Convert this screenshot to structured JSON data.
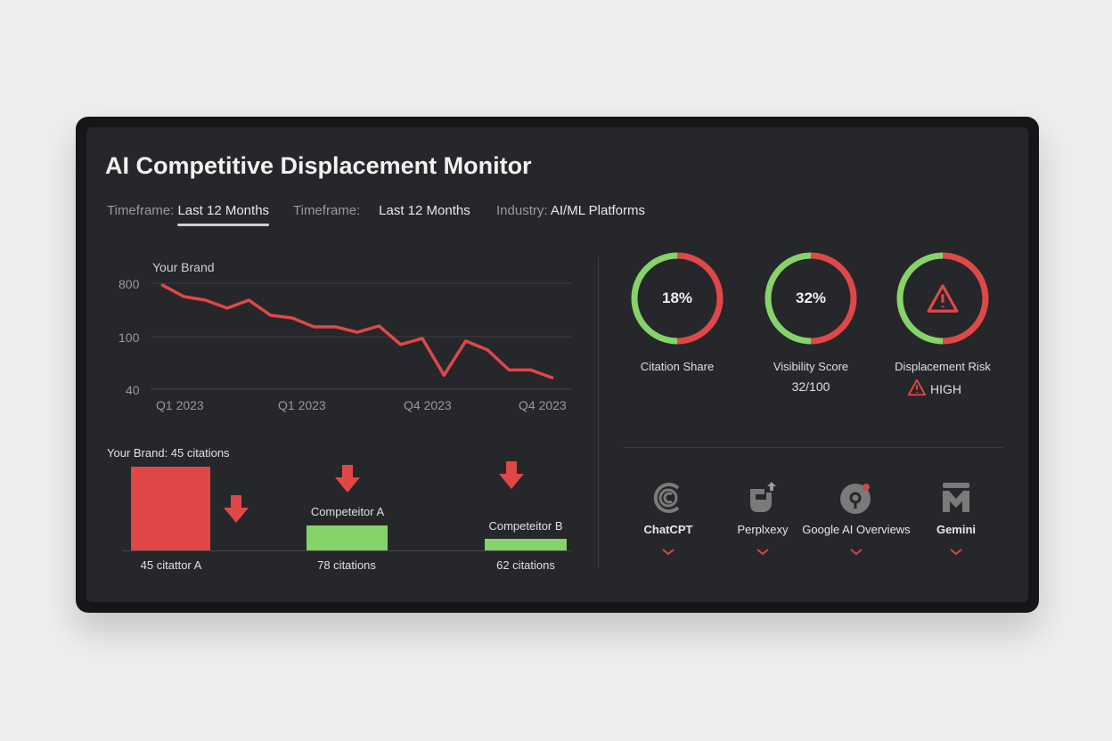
{
  "header": {
    "title": "AI Competitive Displacement Monitor"
  },
  "filters": [
    {
      "label": "Timeframe:",
      "value": "Last 12 Months",
      "active": true
    },
    {
      "label": "Timeframe:",
      "value": "Last 12 Months",
      "active": false
    },
    {
      "label": "Industry:",
      "value": "AI/ML Platforms",
      "active": false
    }
  ],
  "colors": {
    "red": "#e04848",
    "green": "#86d36a",
    "panel": "#26272a"
  },
  "chart_data": [
    {
      "type": "line",
      "title": "Your Brand",
      "yticks": [
        "800",
        "100",
        "40"
      ],
      "xticks": [
        "Q1 2023",
        "Q1 2023",
        "Q4 2023",
        "Q4 2023"
      ],
      "grid": true,
      "series": [
        {
          "name": "Your Brand",
          "values": [
            777,
            625,
            578,
            473,
            578,
            380,
            345,
            228,
            228,
            158,
            240,
            91,
            98,
            56,
            95,
            85,
            62,
            62,
            53
          ]
        }
      ]
    },
    {
      "type": "bar",
      "title": "Your Brand: 45 citations",
      "categories": [
        "Your Brand",
        "Competitor A",
        "Competitor B"
      ],
      "values": [
        45,
        78,
        62
      ],
      "bar_labels": [
        "",
        "Competeitor A",
        "Competeitor B"
      ],
      "value_labels": [
        "45 citattor A",
        "78 citations",
        "62 citations"
      ],
      "trend": [
        "down",
        "down",
        "down"
      ]
    }
  ],
  "gauges": [
    {
      "center": "18%",
      "label": "Citation Share",
      "sub": "",
      "icon": ""
    },
    {
      "center": "32%",
      "label": "Visibility Score",
      "sub": "32/100",
      "icon": ""
    },
    {
      "center": "",
      "label": "Displacement Risk",
      "sub": "HIGH",
      "icon": "warning-icon"
    }
  ],
  "platforms": [
    {
      "name": "ChatCPT",
      "icon": "chatgpt-icon",
      "bold": true
    },
    {
      "name": "Perplxexy",
      "icon": "perplexity-icon",
      "bold": false
    },
    {
      "name": "Google AI Overviews",
      "icon": "google-ai-icon",
      "bold": false
    },
    {
      "name": "Gemini",
      "icon": "gemini-icon",
      "bold": true
    }
  ]
}
